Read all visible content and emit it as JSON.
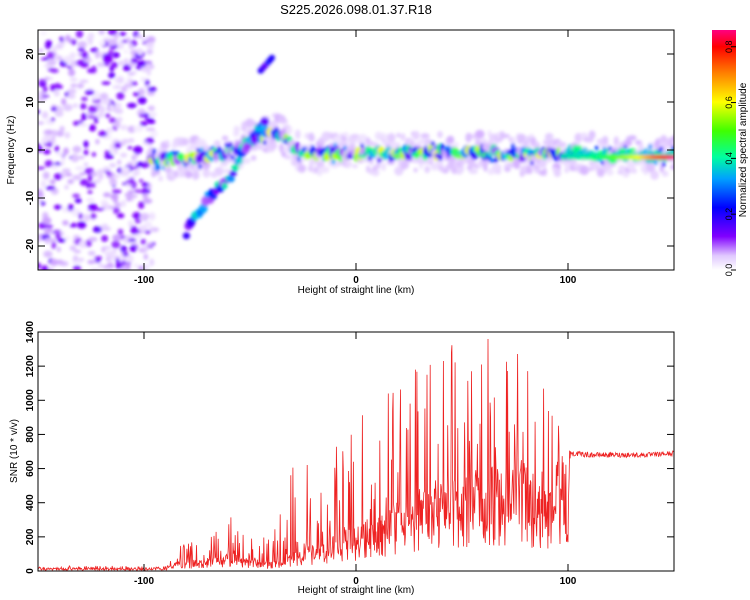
{
  "title": "S225.2026.098.01.37.R18",
  "chart_data": [
    {
      "type": "heatmap",
      "xlabel": "Height of straight line (km)",
      "ylabel": "Frequency (Hz)",
      "xlim": [
        -150,
        150
      ],
      "ylim": [
        -25,
        25
      ],
      "xticks": [
        -100,
        0,
        100
      ],
      "yticks": [
        -20,
        -10,
        0,
        10,
        20
      ],
      "colorbar": {
        "label": "Normalized spectral amplitude",
        "range": [
          0,
          0.86
        ],
        "ticks": [
          0.0,
          0.2,
          0.4,
          0.6,
          0.8
        ],
        "colormap": [
          "#ffffff",
          "#d8b8ff",
          "#8000ff",
          "#0000ff",
          "#00b0ff",
          "#00ff80",
          "#80ff00",
          "#ffff00",
          "#ff8000",
          "#ff0000",
          "#ff0080"
        ]
      },
      "features": [
        {
          "name": "noise region",
          "x_range": [
            -150,
            -95
          ],
          "y_range": [
            -25,
            25
          ],
          "amplitude": 0.1
        },
        {
          "name": "main ridge",
          "points": [
            [
              -97,
              -2
            ],
            [
              -85,
              -2
            ],
            [
              -70,
              -1.5
            ],
            [
              -60,
              -0.5
            ],
            [
              -50,
              2
            ],
            [
              -40,
              4
            ],
            [
              -35,
              3
            ],
            [
              -28,
              0
            ],
            [
              -20,
              -1
            ],
            [
              -10,
              -0.5
            ],
            [
              0,
              -1
            ],
            [
              20,
              -0.5
            ],
            [
              40,
              -0.5
            ],
            [
              60,
              -0.5
            ],
            [
              80,
              -1
            ],
            [
              95,
              -1
            ],
            [
              100,
              -0.5
            ],
            [
              120,
              -1
            ],
            [
              150,
              -1.5
            ]
          ],
          "amplitude": [
            0.25,
            0.6
          ]
        },
        {
          "name": "strong tail",
          "x_range": [
            100,
            150
          ],
          "frequency": -1.5,
          "amplitude": 0.86
        },
        {
          "name": "secondary branch",
          "points": [
            [
              -80,
              -17
            ],
            [
              -70,
              -10
            ],
            [
              -60,
              -6
            ],
            [
              -50,
              2
            ],
            [
              -43,
              5
            ]
          ],
          "amplitude": 0.3
        },
        {
          "name": "upper blob",
          "x": -43,
          "frequency": 18,
          "amplitude": 0.3
        }
      ]
    },
    {
      "type": "line",
      "xlabel": "Height of straight line (km)",
      "ylabel": "SNR (10 * v/v)",
      "xlim": [
        -150,
        150
      ],
      "ylim": [
        0,
        1400
      ],
      "xticks": [
        -100,
        0,
        100
      ],
      "yticks": [
        0,
        200,
        400,
        600,
        800,
        1000,
        1200,
        1400
      ],
      "color": "#ee2222",
      "envelope": {
        "x": [
          -150,
          -100,
          -90,
          -85,
          -70,
          -60,
          -50,
          -40,
          -30,
          -20,
          -10,
          0,
          10,
          20,
          30,
          40,
          50,
          60,
          70,
          80,
          90,
          100,
          101,
          110,
          120,
          130,
          140,
          150
        ],
        "base": [
          15,
          15,
          20,
          40,
          60,
          80,
          60,
          40,
          90,
          120,
          160,
          200,
          250,
          330,
          380,
          420,
          460,
          480,
          470,
          450,
          430,
          560,
          690,
          680,
          680,
          680,
          680,
          690
        ],
        "peak": [
          30,
          30,
          35,
          150,
          200,
          340,
          220,
          220,
          620,
          720,
          800,
          900,
          1080,
          1200,
          1260,
          1380,
          1400,
          1380,
          1340,
          1250,
          1150,
          1050,
          720,
          710,
          710,
          710,
          710,
          720
        ]
      }
    }
  ]
}
